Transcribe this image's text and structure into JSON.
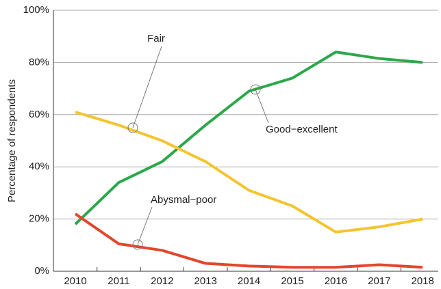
{
  "chart_data": {
    "type": "line",
    "y_label": "Percentage of respondents",
    "categories": [
      "2010",
      "2011",
      "2012",
      "2013",
      "2014",
      "2015",
      "2016",
      "2017",
      "2018"
    ],
    "series": [
      {
        "name": "Good−excellent",
        "color": "#2ba84a",
        "values": [
          18,
          34,
          42,
          56,
          69,
          74,
          84,
          81.5,
          80
        ]
      },
      {
        "name": "Fair",
        "color": "#f4c430",
        "values": [
          61,
          56,
          50,
          42,
          31,
          25,
          15,
          17,
          20
        ]
      },
      {
        "name": "Abysmal−poor",
        "color": "#e2462c",
        "values": [
          22,
          10.5,
          8,
          3,
          2,
          1.5,
          1.5,
          2.5,
          1.5
        ]
      }
    ],
    "ylim": [
      0,
      100
    ],
    "yticks": [
      {
        "value": 0,
        "label": "0%"
      },
      {
        "value": 20,
        "label": "20%"
      },
      {
        "value": 40,
        "label": "40%"
      },
      {
        "value": 60,
        "label": "60%"
      },
      {
        "value": 80,
        "label": "80%"
      },
      {
        "value": 100,
        "label": "100%"
      }
    ],
    "grid": true
  }
}
